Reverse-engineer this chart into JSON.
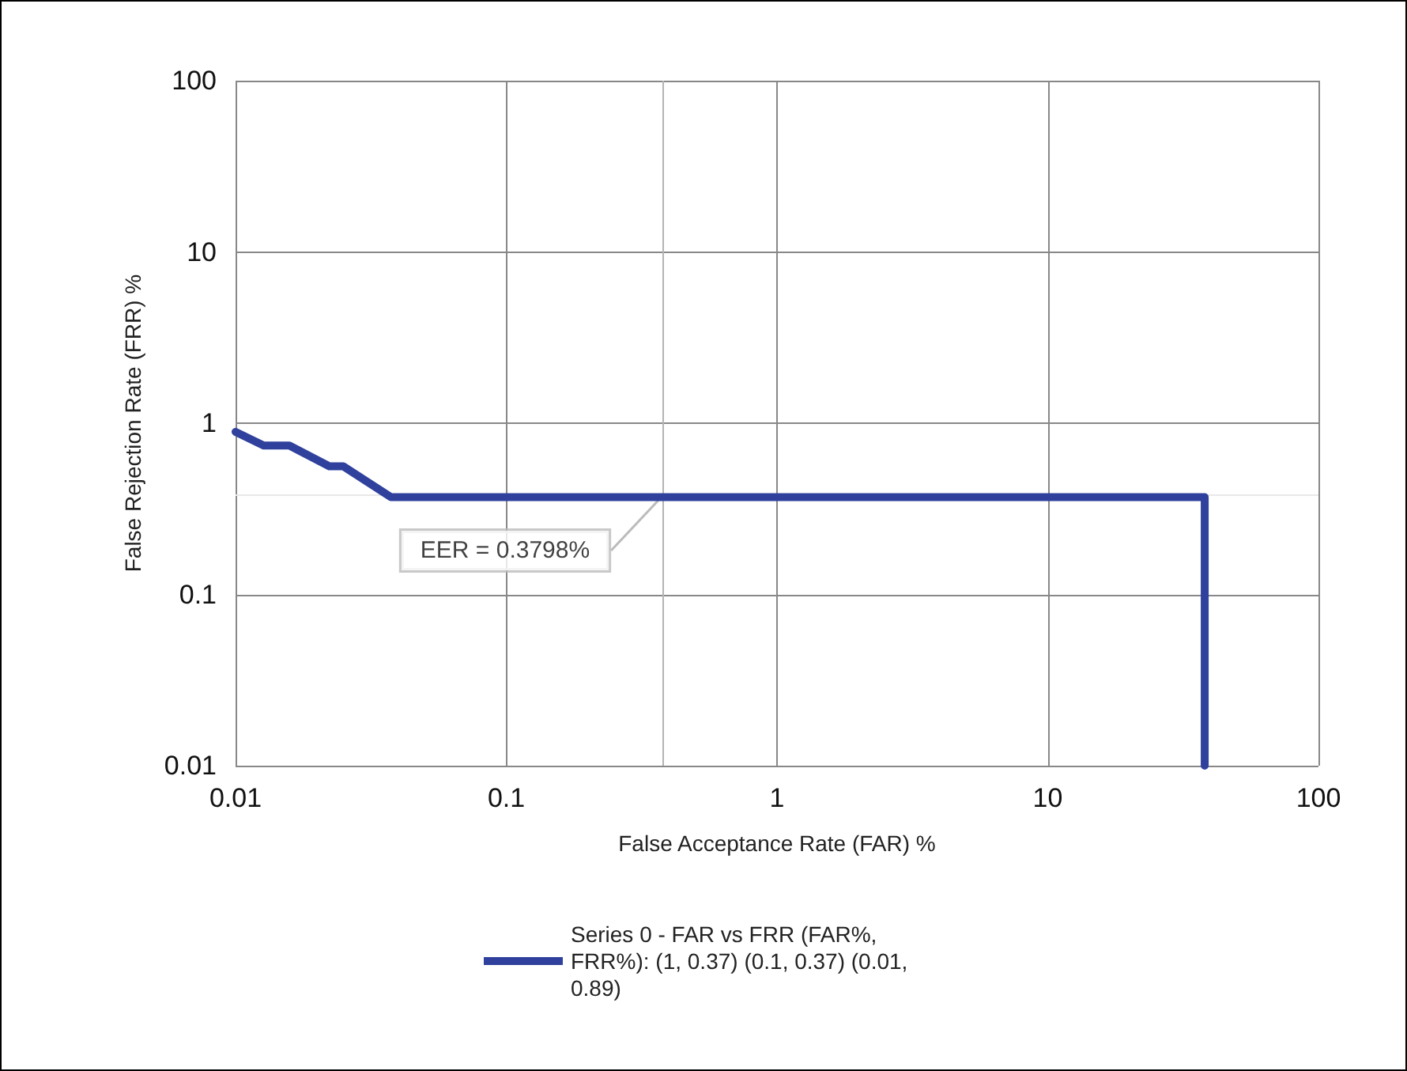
{
  "chart_data": {
    "type": "line",
    "xlabel": "False Acceptance Rate (FAR) %",
    "ylabel": "False Rejection Rate (FRR) %",
    "log": "xy",
    "xlim": [
      0.01,
      100
    ],
    "xticks": [
      0.01,
      0.1,
      1,
      10,
      100
    ],
    "ylim": [
      0.01,
      100
    ],
    "yticks": [
      0.01,
      0.1,
      1,
      10,
      100
    ],
    "grid": true,
    "legend": "bottom",
    "marker": "none",
    "line_style": "solid",
    "series": [
      {
        "name": "Series 0 - FAR vs FRR (FAR%,FRR%): (1, 0.37) (0.1, 0.37) (0.01, 0.89)",
        "color": "#2f419c",
        "x": [
          0.01,
          0.0127,
          0.0158,
          0.0222,
          0.025,
          0.0375,
          38,
          38
        ],
        "values": [
          0.89,
          0.74,
          0.74,
          0.56,
          0.56,
          0.37,
          0.37,
          0.01
        ]
      }
    ],
    "ref_lines": [
      {
        "axis": "x",
        "value": 0.3798,
        "color": "#b4b4b4"
      },
      {
        "axis": "y",
        "value": 0.3798,
        "color": "#e8e8e8"
      }
    ],
    "annotations": [
      {
        "text": "EER = 0.3798%",
        "x": 0.3798,
        "y": 0.3798
      }
    ]
  }
}
